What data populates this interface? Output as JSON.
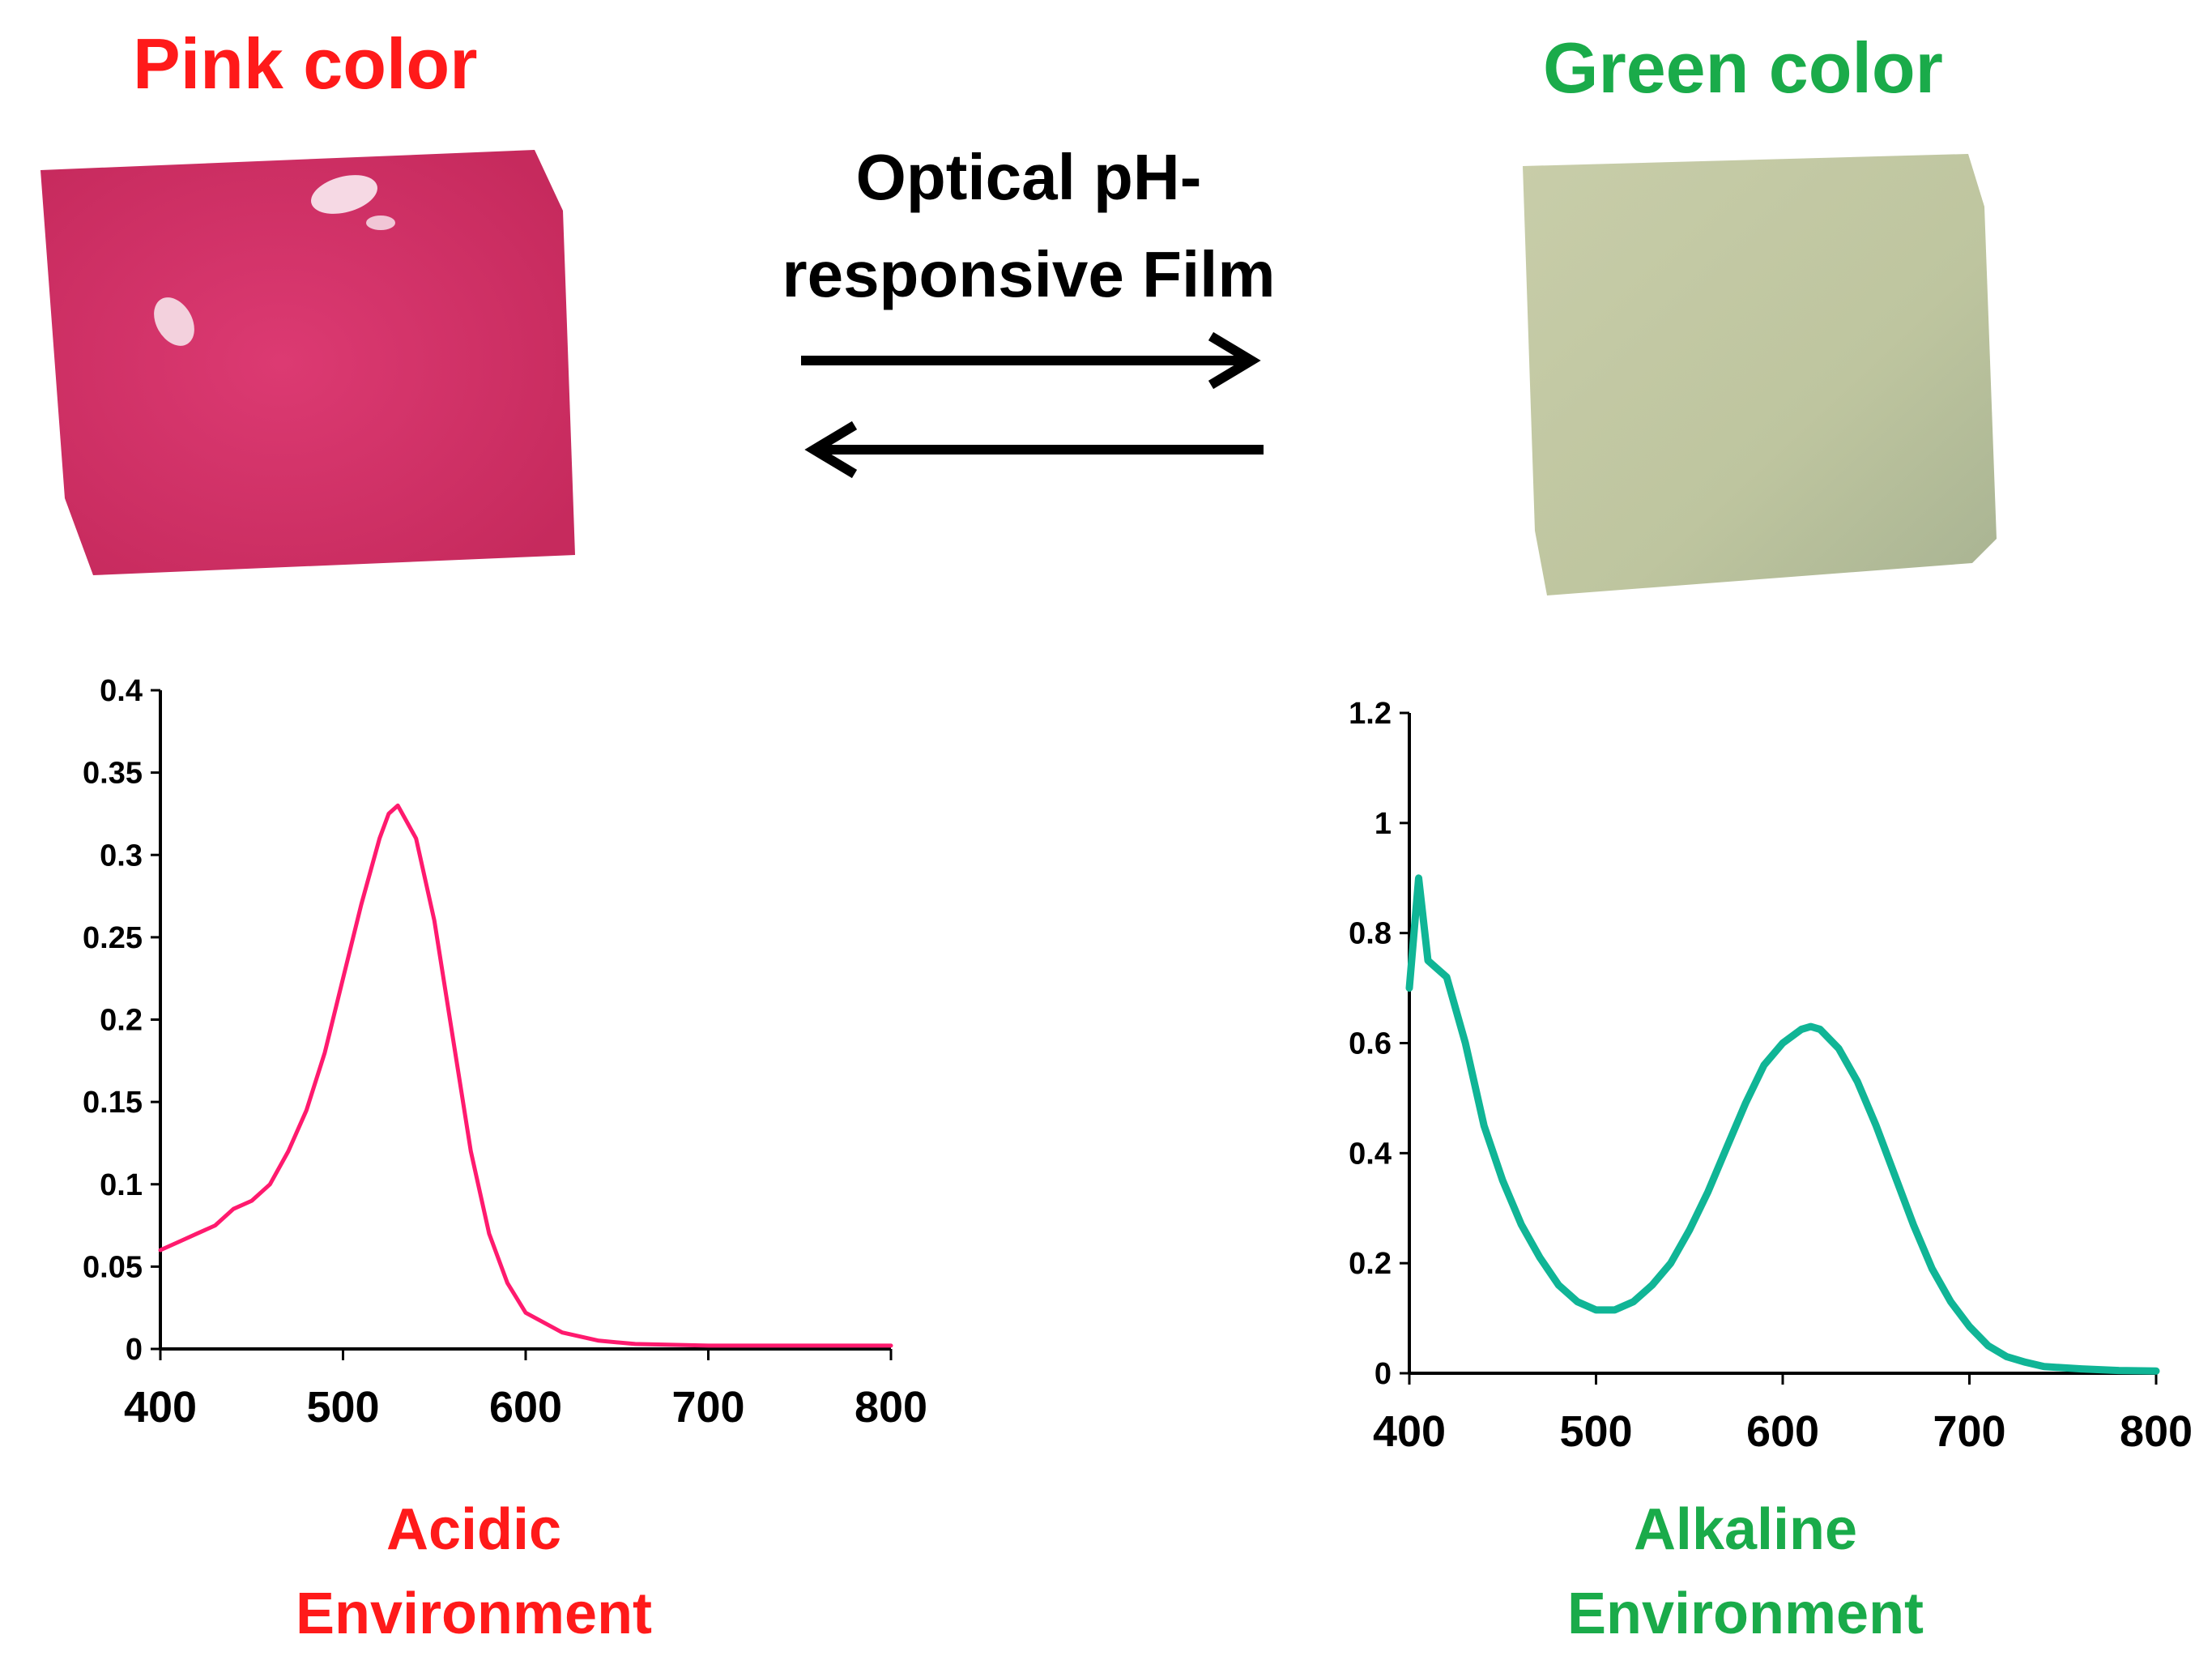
{
  "figure": {
    "left_title": "Pink color",
    "right_title": "Green color",
    "center_title_line1": "Optical pH-",
    "center_title_line2": "responsive Film",
    "left_caption_line1": "Acidic",
    "left_caption_line2": "Environment",
    "right_caption_line1": "Alkaline",
    "right_caption_line2": "Environment",
    "colors": {
      "pink_text": "#ff1a1a",
      "green_text": "#1aab4a",
      "pink_film": "#d8386e",
      "green_film": "#c1c7a2",
      "pink_line": "#ff1a6e",
      "teal_line": "#10b596",
      "arrow": "#000000"
    },
    "icons": [
      "arrow-right-icon",
      "arrow-left-icon"
    ]
  },
  "chart_data": [
    {
      "type": "line",
      "name": "Acidic Environment",
      "xlabel": "",
      "ylabel": "",
      "xlim": [
        400,
        800
      ],
      "ylim": [
        0,
        0.4
      ],
      "xticks": [
        400,
        500,
        600,
        700,
        800
      ],
      "yticks": [
        0,
        0.05,
        0.1,
        0.15,
        0.2,
        0.25,
        0.3,
        0.35,
        0.4
      ],
      "xtick_labels": [
        "400",
        "500",
        "600",
        "700",
        "800"
      ],
      "ytick_labels": [
        "0",
        "0.05",
        "0.1",
        "0.15",
        "0.2",
        "0.25",
        "0.3",
        "0.35",
        "0.4"
      ],
      "grid": false,
      "series": [
        {
          "name": "Acidic",
          "color": "#ff1a6e",
          "x": [
            400,
            410,
            420,
            430,
            440,
            450,
            460,
            470,
            480,
            490,
            500,
            510,
            520,
            525,
            530,
            540,
            550,
            560,
            570,
            580,
            590,
            600,
            620,
            640,
            660,
            700,
            750,
            800
          ],
          "y": [
            0.06,
            0.065,
            0.07,
            0.075,
            0.085,
            0.09,
            0.1,
            0.12,
            0.145,
            0.18,
            0.225,
            0.27,
            0.31,
            0.325,
            0.33,
            0.31,
            0.26,
            0.19,
            0.12,
            0.07,
            0.04,
            0.022,
            0.01,
            0.005,
            0.003,
            0.002,
            0.002,
            0.002
          ]
        }
      ]
    },
    {
      "type": "line",
      "name": "Alkaline Environment",
      "xlabel": "",
      "ylabel": "",
      "xlim": [
        400,
        800
      ],
      "ylim": [
        0,
        1.2
      ],
      "xticks": [
        400,
        500,
        600,
        700,
        800
      ],
      "yticks": [
        0,
        0.2,
        0.4,
        0.6,
        0.8,
        1,
        1.2
      ],
      "xtick_labels": [
        "400",
        "500",
        "600",
        "700",
        "800"
      ],
      "ytick_labels": [
        "0",
        "0.2",
        "0.4",
        "0.6",
        "0.8",
        "1",
        "1.2"
      ],
      "grid": false,
      "series": [
        {
          "name": "Alkaline",
          "color": "#10b596",
          "x": [
            400,
            405,
            410,
            420,
            430,
            440,
            450,
            460,
            470,
            480,
            490,
            500,
            510,
            520,
            530,
            540,
            550,
            560,
            570,
            580,
            590,
            600,
            610,
            615,
            620,
            630,
            640,
            650,
            660,
            670,
            680,
            690,
            700,
            710,
            720,
            730,
            740,
            760,
            780,
            800
          ],
          "y": [
            0.7,
            0.9,
            0.75,
            0.72,
            0.6,
            0.45,
            0.35,
            0.27,
            0.21,
            0.16,
            0.13,
            0.115,
            0.115,
            0.13,
            0.16,
            0.2,
            0.26,
            0.33,
            0.41,
            0.49,
            0.56,
            0.6,
            0.625,
            0.63,
            0.625,
            0.59,
            0.53,
            0.45,
            0.36,
            0.27,
            0.19,
            0.13,
            0.085,
            0.05,
            0.03,
            0.02,
            0.012,
            0.008,
            0.005,
            0.004
          ]
        }
      ]
    }
  ]
}
